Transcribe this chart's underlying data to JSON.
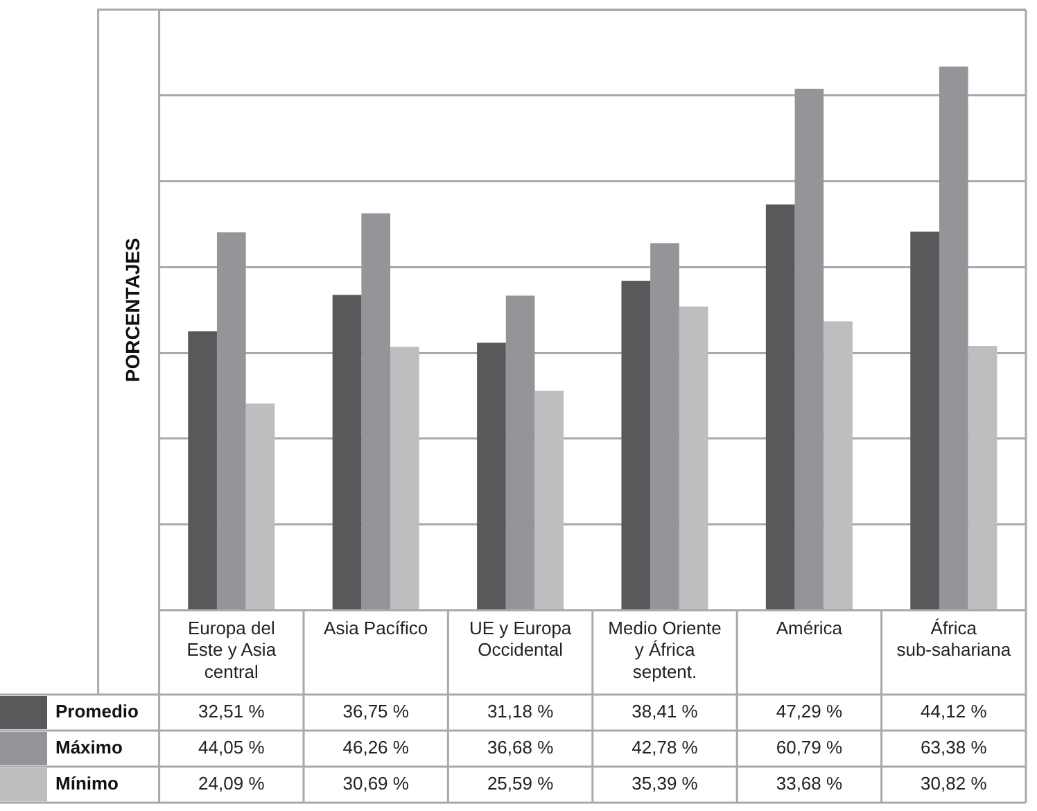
{
  "chart_data": {
    "type": "bar",
    "ylabel": "PORCENTAJES",
    "categories": [
      "Europa del Este y Asia central",
      "Asia Pacífico",
      "UE y Europa Occidental",
      "Medio Oriente y África septent.",
      "América",
      "África sub-sahariana"
    ],
    "series": [
      {
        "name": "Promedio",
        "color": "#58595b",
        "values": [
          32.51,
          36.75,
          31.18,
          38.41,
          47.29,
          44.12
        ],
        "value_labels": [
          "32,51 %",
          "36,75 %",
          "31,18 %",
          "38,41 %",
          "47,29 %",
          "44,12 %"
        ]
      },
      {
        "name": "Máximo",
        "color": "#939598",
        "values": [
          44.05,
          46.26,
          36.68,
          42.78,
          60.79,
          63.38
        ],
        "value_labels": [
          "44,05 %",
          "46,26 %",
          "36,68 %",
          "42,78 %",
          "60,79 %",
          "63,38 %"
        ]
      },
      {
        "name": "Mínimo",
        "color": "#bcbec0",
        "values": [
          24.09,
          30.69,
          25.59,
          35.39,
          33.68,
          30.82
        ],
        "value_labels": [
          "24,09 %",
          "30,69 %",
          "25,59 %",
          "35,39 %",
          "33,68 %",
          "30,82 %"
        ]
      }
    ],
    "grid": "y",
    "legend": "bottom",
    "tick_labels": "x"
  }
}
